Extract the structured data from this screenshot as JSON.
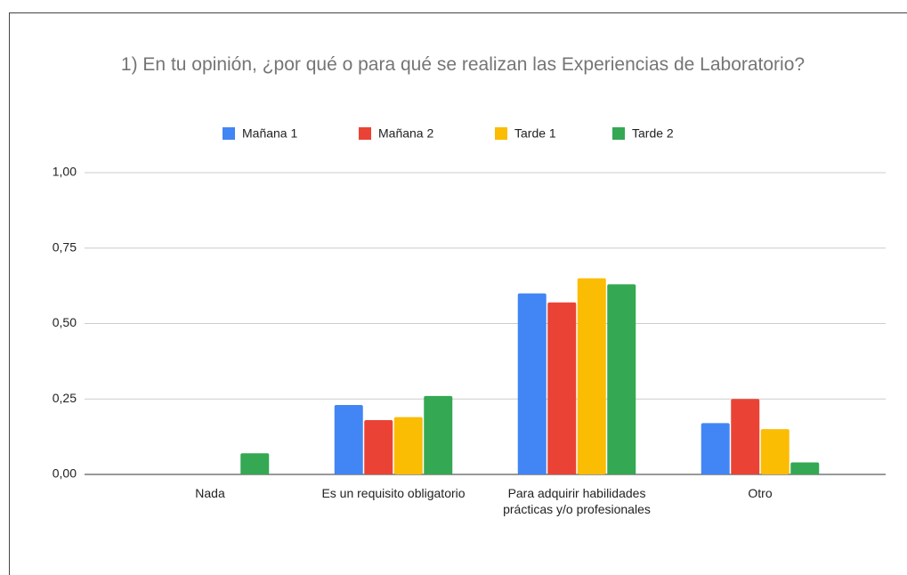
{
  "chart_data": {
    "type": "bar",
    "title": "1) En tu opinión, ¿por qué o para qué se realizan las Experiencias de Laboratorio?",
    "categories": [
      "Nada",
      "Es un requisito obligatorio",
      "Para adquirir habilidades prácticas y/o profesionales",
      "Otro"
    ],
    "series": [
      {
        "name": "Mañana 1",
        "color": "#4285f4",
        "values": [
          0,
          0.23,
          0.6,
          0.17
        ]
      },
      {
        "name": "Mañana 2",
        "color": "#ea4335",
        "values": [
          0,
          0.18,
          0.57,
          0.25
        ]
      },
      {
        "name": "Tarde 1",
        "color": "#fbbc04",
        "values": [
          0,
          0.19,
          0.65,
          0.15
        ]
      },
      {
        "name": "Tarde 2",
        "color": "#34a853",
        "values": [
          0.07,
          0.26,
          0.63,
          0.04
        ]
      }
    ],
    "ylim": [
      0,
      1
    ],
    "yticks": [
      {
        "value": 0,
        "label": "0,00"
      },
      {
        "value": 0.25,
        "label": "0,25"
      },
      {
        "value": 0.5,
        "label": "0,50"
      },
      {
        "value": 0.75,
        "label": "0,75"
      },
      {
        "value": 1,
        "label": "1,00"
      }
    ],
    "grid": true,
    "legend": "top"
  }
}
